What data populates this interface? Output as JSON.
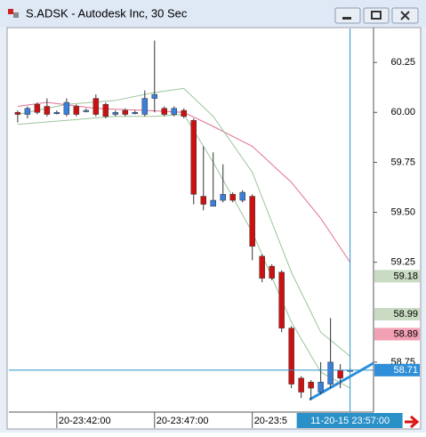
{
  "window": {
    "title": "S.ADSK - Autodesk Inc, 30 Sec"
  },
  "chart_data": {
    "type": "candlestick",
    "up_color": "#3a7fd9",
    "down_color": "#cc1111",
    "open": [
      60.0,
      59.99,
      60.04,
      60.03,
      60.0,
      59.99,
      60.03,
      60.01,
      60.07,
      60.04,
      59.99,
      60.01,
      60.0,
      59.99,
      60.07,
      60.02,
      59.99,
      60.01,
      59.96,
      59.58,
      59.53,
      59.56,
      59.59,
      59.56,
      59.58,
      59.28,
      59.23,
      59.2,
      58.92,
      58.67,
      58.65,
      58.6,
      58.64,
      58.71,
      58.71
    ],
    "high": [
      60.01,
      60.03,
      60.05,
      60.07,
      60.01,
      60.07,
      60.04,
      60.02,
      60.09,
      60.05,
      60.01,
      60.02,
      60.01,
      60.11,
      60.36,
      60.03,
      60.03,
      60.02,
      59.97,
      59.83,
      59.8,
      59.74,
      59.6,
      59.61,
      59.59,
      59.29,
      59.24,
      59.21,
      58.93,
      58.68,
      58.66,
      58.75,
      58.97,
      58.74,
      58.72
    ],
    "low": [
      59.95,
      59.97,
      59.99,
      59.98,
      59.99,
      59.98,
      59.98,
      60.0,
      59.98,
      59.97,
      59.98,
      59.98,
      59.99,
      59.98,
      60.0,
      59.98,
      59.98,
      59.97,
      59.54,
      59.51,
      59.53,
      59.55,
      59.55,
      59.55,
      59.26,
      59.15,
      59.16,
      58.9,
      58.62,
      58.57,
      58.56,
      58.59,
      58.62,
      58.62,
      58.7
    ],
    "close": [
      59.99,
      60.02,
      60.0,
      59.99,
      60.0,
      60.05,
      59.99,
      60.01,
      59.99,
      59.98,
      60.0,
      59.99,
      60.0,
      60.07,
      60.09,
      59.99,
      60.02,
      59.98,
      59.59,
      59.54,
      59.56,
      59.59,
      59.56,
      59.6,
      59.33,
      59.17,
      59.17,
      58.92,
      58.64,
      58.6,
      58.62,
      58.65,
      58.75,
      58.67,
      58.71
    ],
    "lines": [
      {
        "color": "#e07090",
        "x": [
          0,
          3,
          8,
          13,
          17,
          20,
          24,
          28,
          31,
          34
        ],
        "values": [
          60.03,
          60.05,
          60.02,
          60.01,
          60.0,
          59.93,
          59.83,
          59.65,
          59.47,
          59.25
        ]
      },
      {
        "color": "#9cc49c",
        "x": [
          0,
          5,
          10,
          14,
          17,
          20,
          24,
          28,
          31,
          34
        ],
        "values": [
          59.99,
          60.04,
          60.06,
          60.1,
          60.12,
          59.98,
          59.7,
          59.2,
          58.9,
          58.78
        ]
      },
      {
        "color": "#9cc49c",
        "x": [
          0,
          5,
          10,
          14,
          17,
          20,
          24,
          28,
          31,
          34
        ],
        "values": [
          59.94,
          59.96,
          59.98,
          59.98,
          59.99,
          59.75,
          59.4,
          58.95,
          58.7,
          58.62
        ]
      }
    ],
    "xlim": [
      -0.9,
      36.4
    ],
    "ylim": [
      58.5,
      60.42
    ],
    "xticks": [
      {
        "value": 4,
        "label": "20-23:42:00"
      },
      {
        "value": 14,
        "label": "20-23:47:00"
      },
      {
        "value": 24,
        "label": "20-23:5"
      }
    ],
    "yticks": [
      60.25,
      {
        "value": 60,
        "label": "60.00"
      },
      59.75,
      {
        "value": 59.5,
        "label": "59.50"
      },
      59.25,
      58.75
    ],
    "price_tags": [
      {
        "value": 59.18,
        "color": "#c9dcc3"
      },
      {
        "value": 58.99,
        "color": "#c9dcc3"
      },
      {
        "value": 58.89,
        "color": "#f2a0b4"
      },
      {
        "value": 58.71,
        "color": "#2f8fd8"
      }
    ],
    "crosshair": {
      "x": 34,
      "y": 58.71,
      "label": "11-20-15 23:57:00",
      "color": "#2a90c8"
    }
  }
}
